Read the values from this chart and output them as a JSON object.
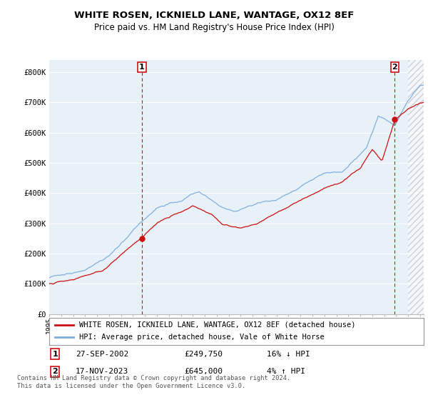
{
  "title_line1": "WHITE ROSEN, ICKNIELD LANE, WANTAGE, OX12 8EF",
  "title_line2": "Price paid vs. HM Land Registry's House Price Index (HPI)",
  "ylim": [
    0,
    840000
  ],
  "yticks": [
    0,
    100000,
    200000,
    300000,
    400000,
    500000,
    600000,
    700000,
    800000
  ],
  "ytick_labels": [
    "£0",
    "£100K",
    "£200K",
    "£300K",
    "£400K",
    "£500K",
    "£600K",
    "£700K",
    "£800K"
  ],
  "xlim_start": 1995.0,
  "xlim_end": 2026.3,
  "hpi_color": "#7aade0",
  "price_color": "#cc1111",
  "marker1_date": 2002.74,
  "marker1_price": 249750,
  "marker1_hpi_at_sale": 298000,
  "marker2_date": 2023.88,
  "marker2_price": 645000,
  "marker2_hpi_at_sale": 620000,
  "legend_label1": "WHITE ROSEN, ICKNIELD LANE, WANTAGE, OX12 8EF (detached house)",
  "legend_label2": "HPI: Average price, detached house, Vale of White Horse",
  "footer_text": "Contains HM Land Registry data © Crown copyright and database right 2024.\nThis data is licensed under the Open Government Licence v3.0.",
  "bg_color": "#ffffff",
  "plot_bg_color": "#e8f0f8",
  "grid_color": "#ffffff",
  "vline_color": "#cc1111",
  "hatch_start": 2025.0
}
